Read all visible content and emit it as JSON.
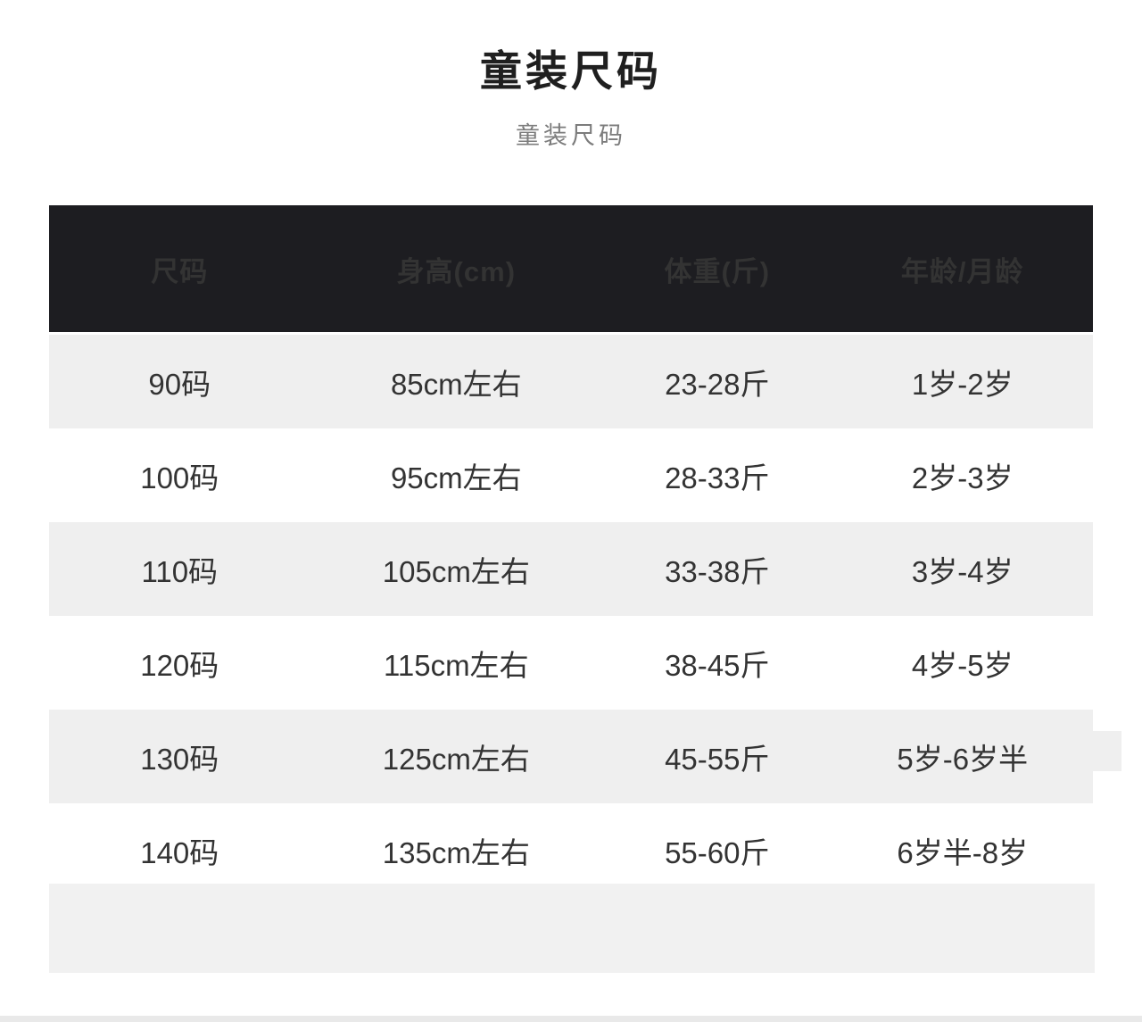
{
  "page": {
    "title": "童装尺码",
    "subtitle": "童装尺码"
  },
  "table": {
    "headers": [
      "尺码",
      "身高(cm)",
      "体重(斤)",
      "年龄/月龄"
    ],
    "rows": [
      [
        "90码",
        "85cm左右",
        "23-28斤",
        "1岁-2岁"
      ],
      [
        "100码",
        "95cm左右",
        "28-33斤",
        "2岁-3岁"
      ],
      [
        "110码",
        "105cm左右",
        "33-38斤",
        "3岁-4岁"
      ],
      [
        "120码",
        "115cm左右",
        "38-45斤",
        "4岁-5岁"
      ],
      [
        "130码",
        "125cm左右",
        "45-55斤",
        "5岁-6岁半"
      ],
      [
        "140码",
        "135cm左右",
        "55-60斤",
        "6岁半-8岁"
      ]
    ]
  },
  "colors": {
    "header_bg": "#1d1d21",
    "header_text": "#f5f5f5",
    "row_alt_bg": "#efefef",
    "row_bg": "#ffffff",
    "body_text": "#333333",
    "title_text": "#1f1f1f",
    "subtitle_text": "#7c7c7c",
    "footer_band": "#f1f1f1"
  }
}
